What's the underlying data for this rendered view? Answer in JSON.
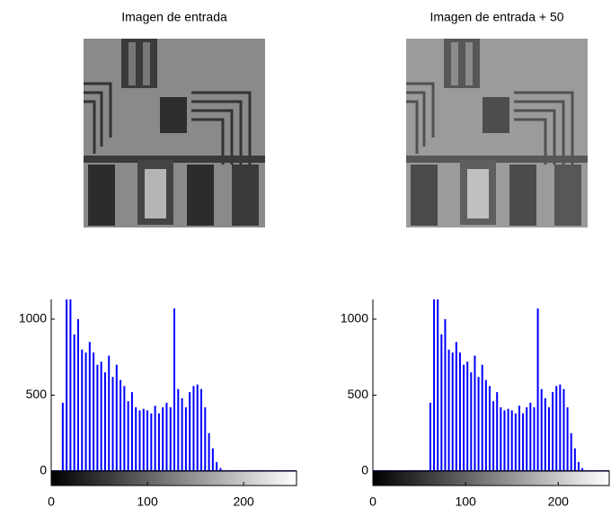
{
  "chart_data": [
    {
      "type": "image",
      "title": "Imagen de entrada"
    },
    {
      "type": "image",
      "title": "Imagen de entrada + 50"
    },
    {
      "type": "stem",
      "color": "#0000ff",
      "x": [
        12,
        16,
        20,
        24,
        28,
        32,
        36,
        40,
        44,
        48,
        52,
        56,
        60,
        64,
        68,
        72,
        76,
        80,
        84,
        88,
        92,
        96,
        100,
        104,
        108,
        112,
        116,
        120,
        124,
        128,
        132,
        136,
        140,
        144,
        148,
        152,
        156,
        160,
        164,
        168,
        172,
        176
      ],
      "values": [
        450,
        1130,
        1130,
        900,
        1000,
        800,
        780,
        850,
        780,
        700,
        720,
        650,
        760,
        620,
        700,
        600,
        560,
        460,
        520,
        420,
        400,
        410,
        400,
        380,
        430,
        380,
        420,
        450,
        420,
        1070,
        540,
        480,
        420,
        520,
        560,
        570,
        540,
        420,
        250,
        150,
        60,
        20
      ],
      "xlim": [
        0,
        255
      ],
      "ylim": [
        0,
        1130
      ],
      "xticks": [
        0,
        100,
        200
      ],
      "yticks": [
        0,
        500,
        1000
      ]
    },
    {
      "type": "stem",
      "color": "#0000ff",
      "x": [
        62,
        66,
        70,
        74,
        78,
        82,
        86,
        90,
        94,
        98,
        102,
        106,
        110,
        114,
        118,
        122,
        126,
        130,
        134,
        138,
        142,
        146,
        150,
        154,
        158,
        162,
        166,
        170,
        174,
        178,
        182,
        186,
        190,
        194,
        198,
        202,
        206,
        210,
        214,
        218,
        222,
        226
      ],
      "values": [
        450,
        1130,
        1130,
        900,
        1000,
        800,
        780,
        850,
        780,
        700,
        720,
        650,
        760,
        620,
        700,
        600,
        560,
        460,
        520,
        420,
        400,
        410,
        400,
        380,
        430,
        380,
        420,
        450,
        420,
        1070,
        540,
        480,
        420,
        520,
        560,
        570,
        540,
        420,
        250,
        150,
        60,
        20
      ],
      "xlim": [
        0,
        255
      ],
      "ylim": [
        0,
        1130
      ],
      "xticks": [
        0,
        100,
        200
      ],
      "yticks": [
        0,
        500,
        1000
      ]
    }
  ]
}
